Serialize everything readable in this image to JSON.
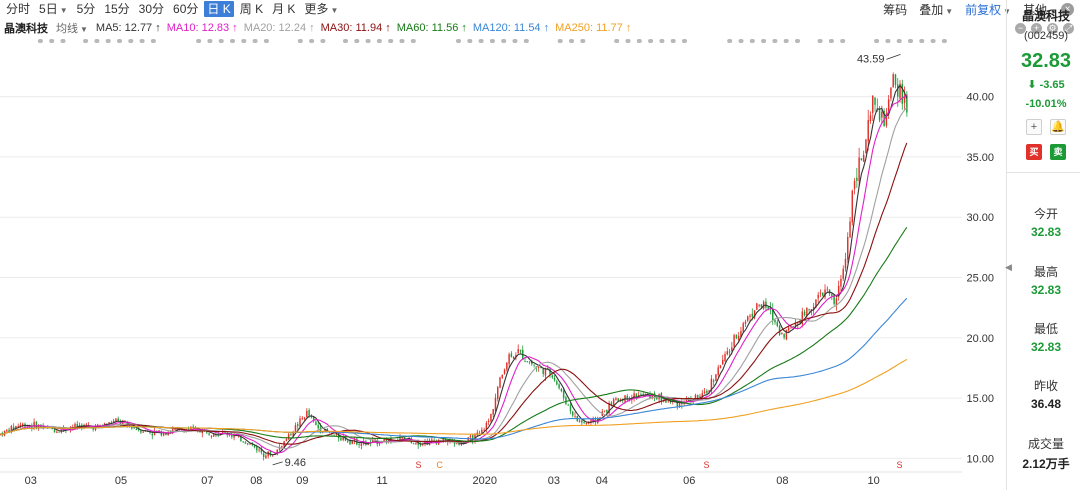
{
  "toolbar": {
    "periods": [
      "分时",
      "5日",
      "5分",
      "15分",
      "30分",
      "60分",
      "日 K",
      "周 K",
      "月 K",
      "更多"
    ],
    "active_index": 6,
    "tools": [
      "筹码",
      "叠加",
      "前复权",
      "其他"
    ]
  },
  "ma_row": {
    "stock_name": "晶澳科技",
    "mode": "均线",
    "items": [
      {
        "label": "MA5: 12.77 ↑",
        "color": "#333333"
      },
      {
        "label": "MA10: 12.83 ↑",
        "color": "#e020c8"
      },
      {
        "label": "MA20: 12.24 ↑",
        "color": "#a0a0a0"
      },
      {
        "label": "MA30: 11.94 ↑",
        "color": "#8b1010"
      },
      {
        "label": "MA60: 11.56 ↑",
        "color": "#167a16"
      },
      {
        "label": "MA120: 11.54 ↑",
        "color": "#3a86d6"
      },
      {
        "label": "MA250: 11.77 ↑",
        "color": "#f0a020"
      }
    ]
  },
  "panel": {
    "name": "晶澳科技",
    "code": "(002459)",
    "price": "32.83",
    "change": "⬇ -3.65",
    "pct": "-10.01%",
    "buy_label": "买",
    "sell_label": "卖",
    "open_label": "今开",
    "open_value": "32.83",
    "high_label": "最高",
    "high_value": "32.83",
    "low_label": "最低",
    "low_value": "32.83",
    "prev_label": "昨收",
    "prev_value": "36.48",
    "vol_label": "成交量",
    "vol_value": "2.12万手"
  },
  "chart_data": {
    "type": "candlestick",
    "y_ticks": [
      10,
      15,
      20,
      25,
      30,
      35,
      40
    ],
    "y_tick_labels": [
      "10.00",
      "15.00",
      "20.00",
      "25.00",
      "30.00",
      "35.00",
      "40.00"
    ],
    "ylim": [
      9.2,
      44.2
    ],
    "x_labels": [
      {
        "label": "03",
        "pos": 0.032
      },
      {
        "label": "05",
        "pos": 0.126
      },
      {
        "label": "07",
        "pos": 0.216
      },
      {
        "label": "08",
        "pos": 0.267
      },
      {
        "label": "09",
        "pos": 0.315
      },
      {
        "label": "11",
        "pos": 0.398
      },
      {
        "label": "2020",
        "pos": 0.505
      },
      {
        "label": "03",
        "pos": 0.577
      },
      {
        "label": "04",
        "pos": 0.627
      },
      {
        "label": "06",
        "pos": 0.718
      },
      {
        "label": "08",
        "pos": 0.815
      },
      {
        "label": "10",
        "pos": 0.91
      }
    ],
    "annotations": [
      {
        "text": "43.59",
        "kind": "high",
        "pos": 0.938,
        "value": 43.59
      },
      {
        "text": "9.46",
        "kind": "low",
        "pos": 0.284,
        "value": 9.46
      }
    ],
    "markers": [
      {
        "text": "S",
        "pos": 0.436
      },
      {
        "text": "C",
        "pos": 0.458
      },
      {
        "text": "S",
        "pos": 0.736
      },
      {
        "text": "S",
        "pos": 0.937
      }
    ],
    "close_series": {
      "pos": [
        0,
        0.02,
        0.04,
        0.06,
        0.08,
        0.1,
        0.12,
        0.14,
        0.16,
        0.18,
        0.2,
        0.22,
        0.24,
        0.26,
        0.275,
        0.285,
        0.3,
        0.32,
        0.33,
        0.345,
        0.36,
        0.38,
        0.4,
        0.42,
        0.44,
        0.46,
        0.48,
        0.5,
        0.51,
        0.52,
        0.53,
        0.54,
        0.55,
        0.56,
        0.575,
        0.59,
        0.6,
        0.61,
        0.62,
        0.64,
        0.66,
        0.68,
        0.7,
        0.72,
        0.735,
        0.745,
        0.76,
        0.775,
        0.79,
        0.8,
        0.815,
        0.83,
        0.845,
        0.86,
        0.87,
        0.88,
        0.89,
        0.9,
        0.91,
        0.92,
        0.93,
        0.94,
        0.947
      ],
      "values": [
        12.0,
        12.8,
        12.7,
        12.3,
        12.7,
        12.6,
        13.1,
        12.5,
        12.1,
        12.3,
        12.4,
        12.2,
        12.0,
        11.2,
        10.4,
        10.3,
        11.8,
        13.8,
        12.6,
        12.0,
        11.6,
        11.2,
        11.5,
        11.6,
        11.3,
        11.5,
        11.2,
        12.0,
        13.2,
        16.3,
        18.5,
        18.8,
        18.1,
        17.5,
        17.0,
        14.6,
        13.2,
        12.9,
        13.1,
        14.8,
        15.2,
        15.2,
        14.6,
        14.9,
        15.2,
        17.0,
        19.0,
        21.3,
        22.8,
        22.4,
        20.2,
        21.4,
        22.6,
        24.0,
        22.8,
        26.2,
        33.5,
        35.2,
        39.8,
        37.5,
        41.0,
        40.2,
        38.4
      ]
    }
  }
}
